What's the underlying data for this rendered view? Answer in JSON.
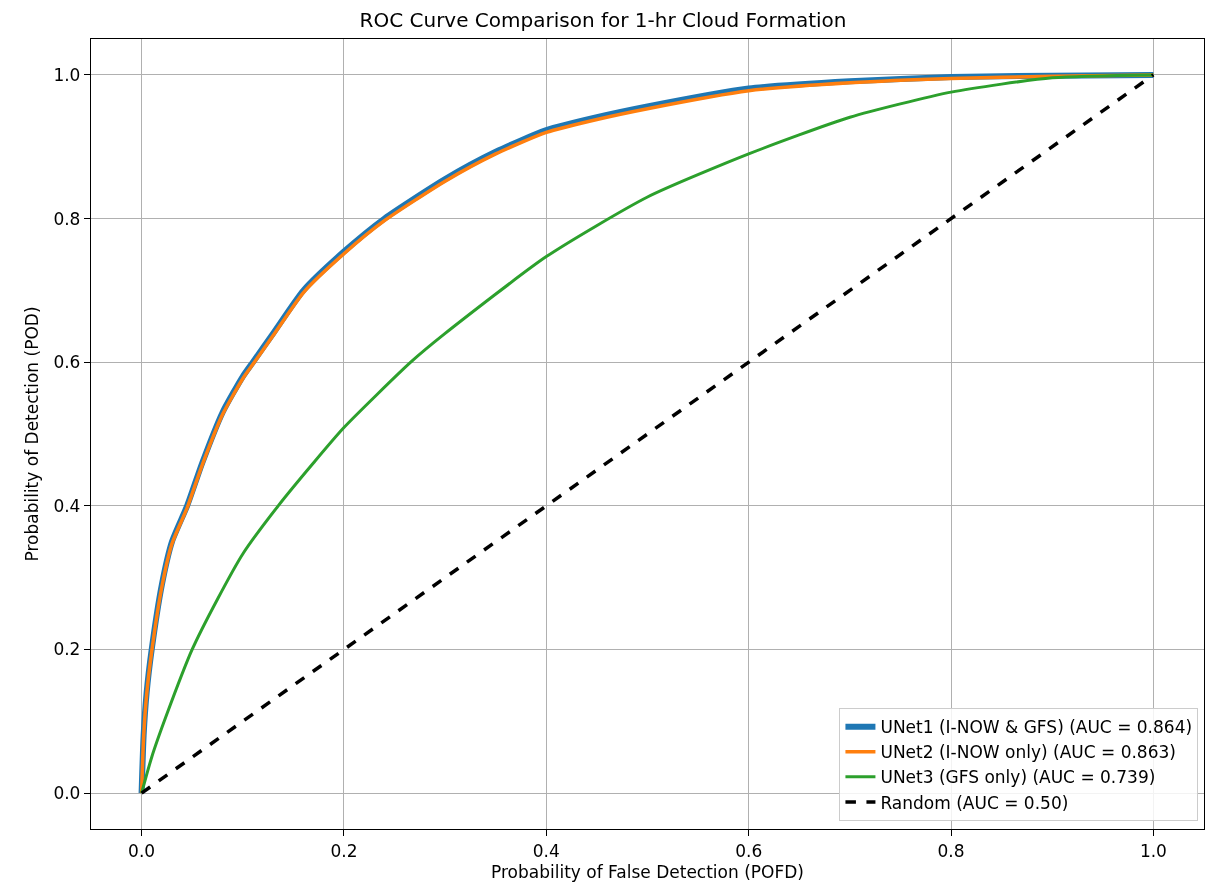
{
  "chart_data": {
    "type": "line",
    "title": "ROC Curve Comparison for 1-hr Cloud Formation",
    "xlabel": "Probability of False Detection (POFD)",
    "ylabel": "Probability of Detection (POD)",
    "xlim": [
      -0.05,
      1.05
    ],
    "ylim": [
      -0.05,
      1.05
    ],
    "xticks": [
      {
        "value": 0,
        "label": "0.0"
      },
      {
        "value": 0.2,
        "label": "0.2"
      },
      {
        "value": 0.4,
        "label": "0.4"
      },
      {
        "value": 0.6,
        "label": "0.6"
      },
      {
        "value": 0.8,
        "label": "0.8"
      },
      {
        "value": 1,
        "label": "1.0"
      }
    ],
    "yticks": [
      {
        "value": 0,
        "label": "0.0"
      },
      {
        "value": 0.2,
        "label": "0.2"
      },
      {
        "value": 0.4,
        "label": "0.4"
      },
      {
        "value": 0.6,
        "label": "0.6"
      },
      {
        "value": 0.8,
        "label": "0.8"
      },
      {
        "value": 1,
        "label": "1.0"
      }
    ],
    "grid": true,
    "legend": "bottom right",
    "marker": "none",
    "series": [
      {
        "name": "UNet1 (I-NOW & GFS) (AUC = 0.864)",
        "color": "#1f77b4",
        "line_style": "solid",
        "x": [
          0,
          0.002,
          0.005,
          0.01,
          0.02,
          0.03,
          0.045,
          0.06,
          0.08,
          0.1,
          0.11,
          0.13,
          0.16,
          0.2,
          0.24,
          0.3,
          0.35,
          0.4,
          0.45,
          0.5,
          0.6,
          0.7,
          0.8,
          0.9,
          1
        ],
        "values": [
          0,
          0.08,
          0.14,
          0.2,
          0.29,
          0.35,
          0.4,
          0.46,
          0.53,
          0.58,
          0.6,
          0.64,
          0.7,
          0.754,
          0.8,
          0.855,
          0.893,
          0.923,
          0.941,
          0.956,
          0.981,
          0.991,
          0.997,
          0.999,
          1
        ]
      },
      {
        "name": "UNet2 (I-NOW only) (AUC = 0.863)",
        "color": "#ff7f0e",
        "line_style": "solid",
        "x": [
          0,
          0.002,
          0.005,
          0.01,
          0.02,
          0.03,
          0.045,
          0.06,
          0.08,
          0.1,
          0.11,
          0.13,
          0.16,
          0.2,
          0.24,
          0.3,
          0.35,
          0.4,
          0.45,
          0.5,
          0.6,
          0.7,
          0.8,
          0.9,
          1
        ],
        "values": [
          0,
          0.078,
          0.137,
          0.197,
          0.287,
          0.347,
          0.397,
          0.457,
          0.527,
          0.577,
          0.597,
          0.637,
          0.697,
          0.751,
          0.797,
          0.852,
          0.89,
          0.92,
          0.938,
          0.953,
          0.978,
          0.989,
          0.995,
          0.998,
          1
        ]
      },
      {
        "name": "UNet3 (GFS only) (AUC = 0.739)",
        "color": "#2ca02c",
        "line_style": "solid",
        "x": [
          0,
          0.01,
          0.025,
          0.05,
          0.075,
          0.1,
          0.135,
          0.17,
          0.2,
          0.266,
          0.3,
          0.4,
          0.5,
          0.6,
          0.7,
          0.8,
          0.9,
          1
        ],
        "values": [
          0,
          0.05,
          0.11,
          0.2,
          0.27,
          0.333,
          0.4,
          0.46,
          0.509,
          0.6,
          0.64,
          0.747,
          0.83,
          0.89,
          0.941,
          0.976,
          0.996,
          1
        ]
      },
      {
        "name": "Random (AUC = 0.50)",
        "color": "#000000",
        "line_style": "dashed",
        "x": [
          0,
          1
        ],
        "values": [
          0,
          1
        ]
      }
    ]
  }
}
